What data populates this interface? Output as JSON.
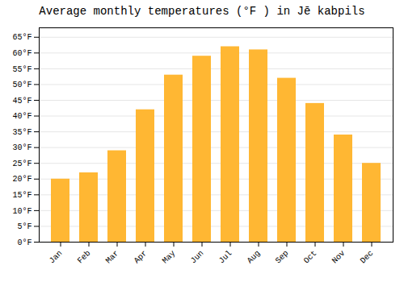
{
  "chart_data": {
    "type": "bar",
    "title": "Average monthly temperatures (°F ) in Jē kabpils",
    "categories": [
      "Jan",
      "Feb",
      "Mar",
      "Apr",
      "May",
      "Jun",
      "Jul",
      "Aug",
      "Sep",
      "Oct",
      "Nov",
      "Dec"
    ],
    "values": [
      20,
      22,
      29,
      42,
      53,
      59,
      62,
      61,
      52,
      44,
      34,
      25
    ],
    "color": "#FFB733",
    "ylim": [
      0,
      68
    ],
    "yticks": [
      {
        "value": 0,
        "label": "0°F"
      },
      {
        "value": 5,
        "label": "5°F"
      },
      {
        "value": 10,
        "label": "10°F"
      },
      {
        "value": 15,
        "label": "15°F"
      },
      {
        "value": 20,
        "label": "20°F"
      },
      {
        "value": 25,
        "label": "25°F"
      },
      {
        "value": 30,
        "label": "30°F"
      },
      {
        "value": 35,
        "label": "35°F"
      },
      {
        "value": 40,
        "label": "40°F"
      },
      {
        "value": 45,
        "label": "45°F"
      },
      {
        "value": 50,
        "label": "50°F"
      },
      {
        "value": 55,
        "label": "55°F"
      },
      {
        "value": 60,
        "label": "60°F"
      },
      {
        "value": 65,
        "label": "65°F"
      }
    ],
    "grid": true
  }
}
